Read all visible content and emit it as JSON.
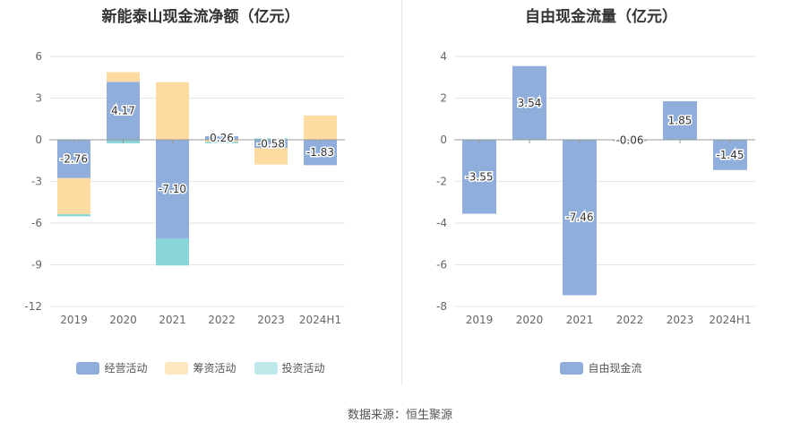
{
  "source": "数据来源：恒生聚源",
  "colors": {
    "operating": "#8faedc",
    "financing": "#fddba1",
    "investing": "#87d5d8",
    "fcf": "#8faedc"
  },
  "chart_data": [
    {
      "type": "bar",
      "stacked": true,
      "title": "新能泰山现金流净额（亿元）",
      "categories": [
        "2019",
        "2020",
        "2021",
        "2022",
        "2023",
        "2024H1"
      ],
      "ylim": [
        -12,
        6
      ],
      "yticks": [
        "6",
        "3",
        "0",
        "-3",
        "-6",
        "-9",
        "-12"
      ],
      "ytick_values": [
        6,
        3,
        0,
        -3,
        -6,
        -9,
        -12
      ],
      "series": [
        {
          "name": "经营活动",
          "color": "#8faedc",
          "values": [
            -2.76,
            4.17,
            -7.1,
            0.26,
            -0.58,
            -1.83
          ]
        },
        {
          "name": "筹资活动",
          "color": "#fddba1",
          "values": [
            -2.6,
            0.7,
            4.15,
            -0.15,
            -1.2,
            1.75
          ]
        },
        {
          "name": "投资活动",
          "color": "#87d5d8",
          "values": [
            -0.15,
            -0.25,
            -1.95,
            -0.1,
            0.1,
            0.0
          ]
        }
      ],
      "data_labels": [
        "-2.76",
        "4.17",
        "-7.10",
        "0.26",
        "-0.58",
        "-1.83"
      ],
      "legend": [
        "经营活动",
        "筹资活动",
        "投资活动"
      ],
      "legend_position": "bottom"
    },
    {
      "type": "bar",
      "title": "自由现金流量（亿元）",
      "categories": [
        "2019",
        "2020",
        "2021",
        "2022",
        "2023",
        "2024H1"
      ],
      "ylim": [
        -8,
        4
      ],
      "yticks": [
        "4",
        "2",
        "0",
        "-2",
        "-4",
        "-6",
        "-8"
      ],
      "ytick_values": [
        4,
        2,
        0,
        -2,
        -4,
        -6,
        -8
      ],
      "series": [
        {
          "name": "自由现金流",
          "color": "#8faedc",
          "values": [
            -3.55,
            3.54,
            -7.46,
            -0.06,
            1.85,
            -1.45
          ]
        }
      ],
      "data_labels": [
        "-3.55",
        "3.54",
        "-7.46",
        "-0.06",
        "1.85",
        "-1.45"
      ],
      "legend": [
        "自由现金流"
      ],
      "legend_position": "bottom"
    }
  ]
}
